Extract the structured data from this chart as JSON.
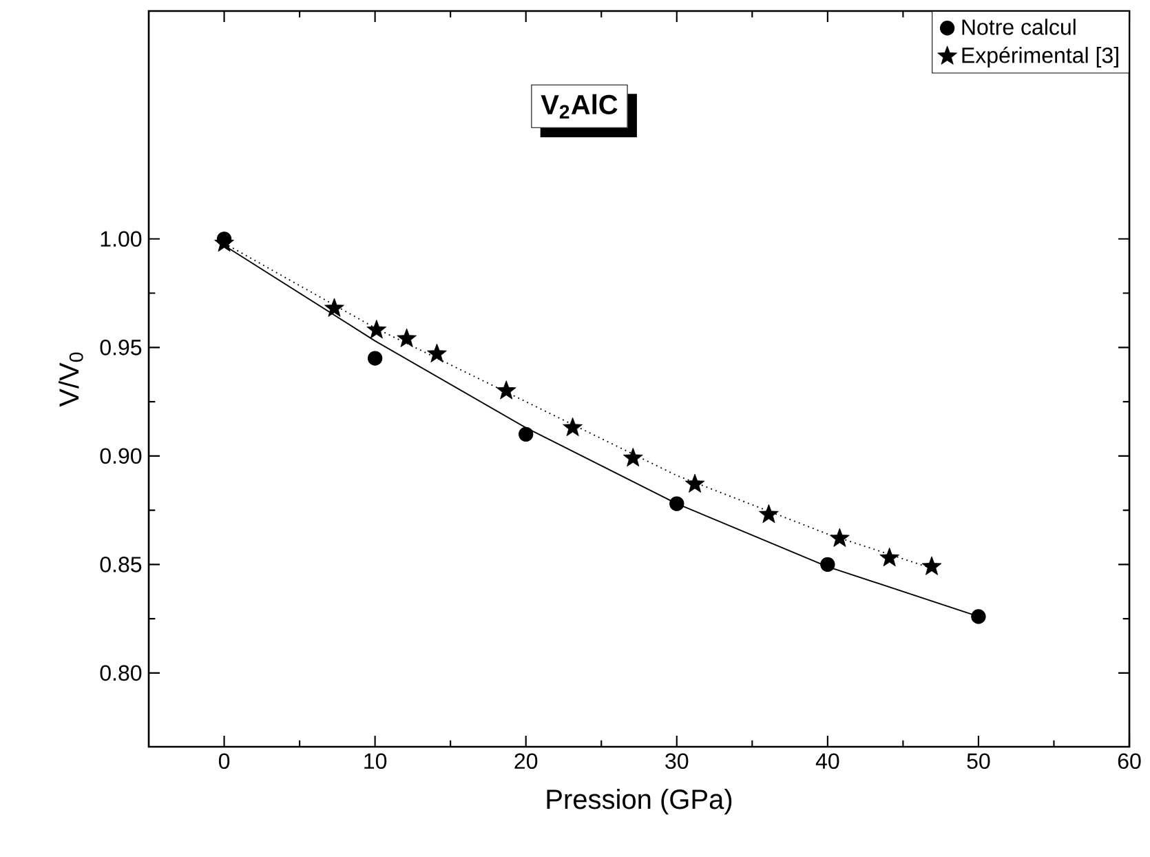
{
  "chart_data": {
    "type": "scatter",
    "xlabel": "Pression (GPa)",
    "ylabel": "V/V$_{0}$",
    "annotations": [
      "V$_{2}$AlC"
    ],
    "series": [
      {
        "name": "Notre calcul",
        "color": "#000000",
        "marker": "circle",
        "x": [
          0,
          10,
          20,
          30,
          40,
          50
        ],
        "values": [
          1.0,
          0.945,
          0.91,
          0.878,
          0.85,
          0.826
        ]
      },
      {
        "name": "Expérimental [3]",
        "color": "#000000",
        "marker": "star",
        "x": [
          0,
          7.3,
          10.1,
          12.1,
          14.1,
          18.7,
          23.1,
          27.1,
          31.2,
          36.1,
          40.8,
          44.1,
          46.9
        ],
        "values": [
          0.998,
          0.968,
          0.958,
          0.954,
          0.947,
          0.93,
          0.913,
          0.899,
          0.887,
          0.873,
          0.862,
          0.853,
          0.849
        ]
      },
      {
        "type": "line",
        "color": "#000000",
        "line_style": "solid",
        "x": [
          0,
          10,
          20,
          30,
          40,
          50
        ],
        "values": [
          0.997,
          0.953,
          0.913,
          0.878,
          0.849,
          0.826
        ]
      },
      {
        "type": "line",
        "color": "#000000",
        "line_style": "dotted",
        "x": [
          0,
          10,
          20,
          30,
          40,
          47
        ],
        "values": [
          0.998,
          0.959,
          0.925,
          0.891,
          0.864,
          0.848
        ]
      }
    ],
    "xlim": [
      -5,
      60
    ],
    "ylim": [
      0.766,
      1.105
    ],
    "xticks": [
      0,
      10,
      20,
      30,
      40,
      50,
      60
    ],
    "yticks": [
      {
        "value": 0.8,
        "label": "0.80"
      },
      {
        "value": 0.85,
        "label": "0.85"
      },
      {
        "value": 0.9,
        "label": "0.90"
      },
      {
        "value": 0.95,
        "label": "0.95"
      },
      {
        "value": 1.0,
        "label": "1.00"
      }
    ],
    "legend": "top right",
    "grid": false
  }
}
